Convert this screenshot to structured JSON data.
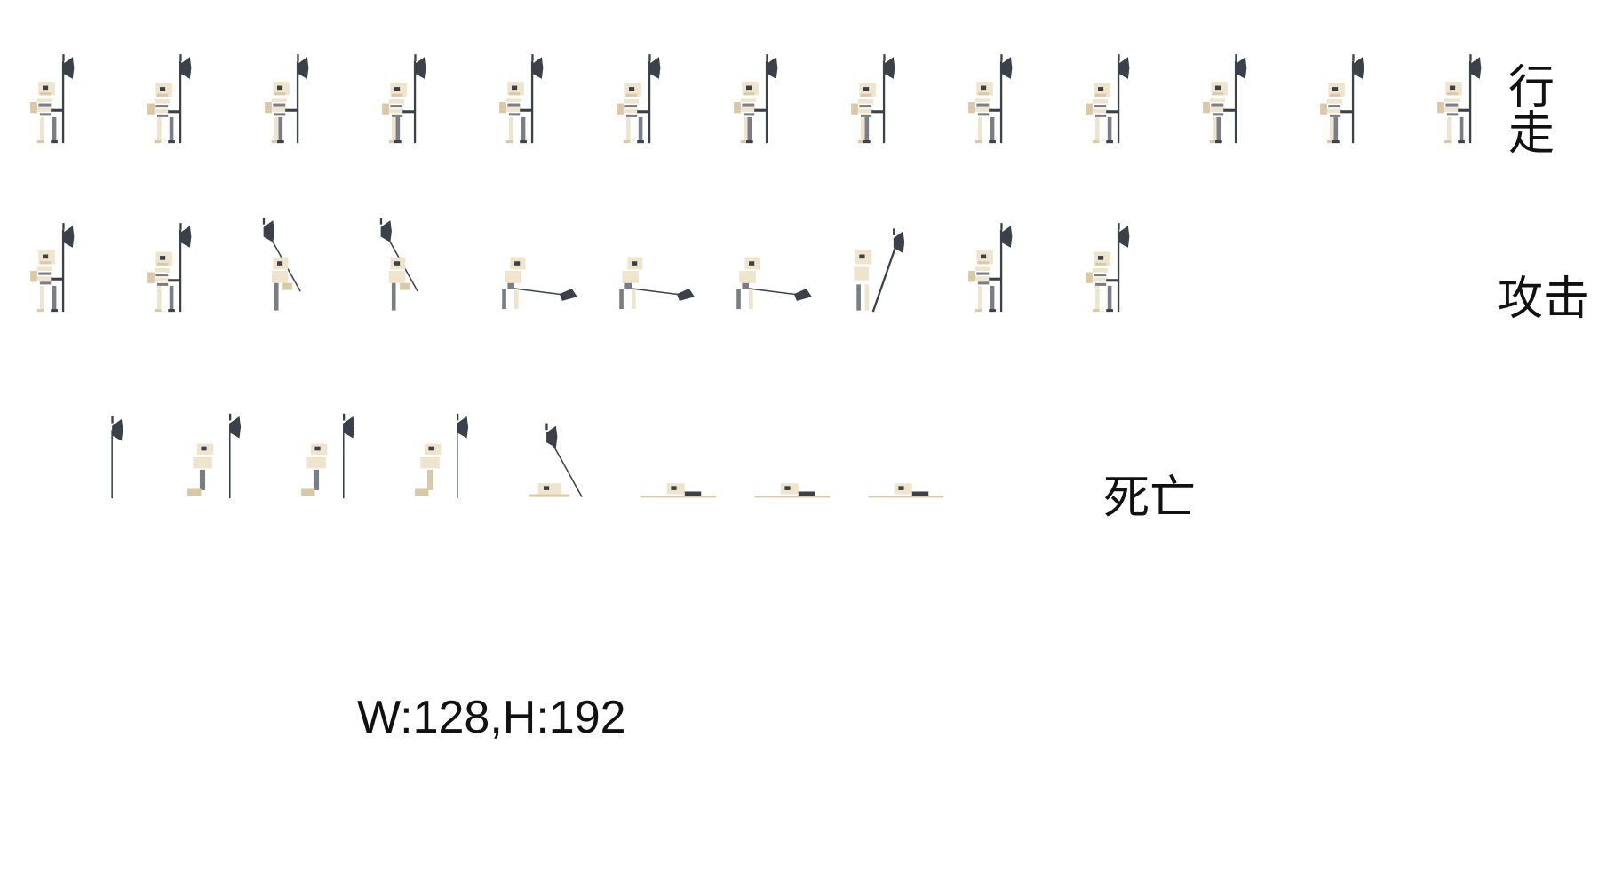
{
  "animations": [
    {
      "key": "walk",
      "label": "行走",
      "frames": 13,
      "pose": "walk"
    },
    {
      "key": "attack",
      "label": "攻击",
      "frames": 10,
      "pose": "attack"
    },
    {
      "key": "death",
      "label": "死亡",
      "frames": 8,
      "pose": "death"
    }
  ],
  "frame_size": "W:128,H:192",
  "colors": {
    "bone": "#efe4cc",
    "bone_shade": "#d9c9a6",
    "dark": "#3b4049",
    "mid": "#7a7d86"
  }
}
